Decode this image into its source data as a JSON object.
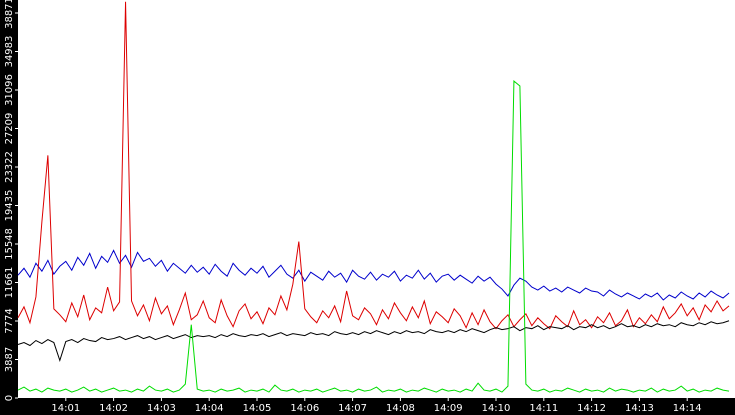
{
  "chart_data": {
    "type": "line",
    "categories": [
      null,
      null,
      null,
      null,
      null,
      null,
      null,
      null,
      "14:01",
      null,
      null,
      null,
      null,
      null,
      null,
      null,
      "14:02",
      null,
      null,
      null,
      null,
      null,
      null,
      null,
      "14:03",
      null,
      null,
      null,
      null,
      null,
      null,
      null,
      "14:04",
      null,
      null,
      null,
      null,
      null,
      null,
      null,
      "14:05",
      null,
      null,
      null,
      null,
      null,
      null,
      null,
      "14:06",
      null,
      null,
      null,
      null,
      null,
      null,
      null,
      "14:07",
      null,
      null,
      null,
      null,
      null,
      null,
      null,
      "14:08",
      null,
      null,
      null,
      null,
      null,
      null,
      null,
      "14:09",
      null,
      null,
      null,
      null,
      null,
      null,
      null,
      "14:10",
      null,
      null,
      null,
      null,
      null,
      null,
      null,
      "14:11",
      null,
      null,
      null,
      null,
      null,
      null,
      null,
      "14:12",
      null,
      null,
      null,
      null,
      null,
      null,
      null,
      "14:13",
      null,
      null,
      null,
      null,
      null,
      null,
      null,
      "14:14",
      null,
      null,
      null,
      null,
      null,
      null,
      null
    ],
    "series": [
      {
        "color": "#0000cc",
        "values": [
          12400,
          13100,
          12200,
          13600,
          12800,
          13900,
          12500,
          13300,
          13800,
          12900,
          14200,
          13400,
          14600,
          13100,
          14300,
          13700,
          14900,
          13600,
          14400,
          13200,
          14700,
          13800,
          14100,
          13300,
          13900,
          12800,
          13600,
          13100,
          12600,
          13400,
          12700,
          13200,
          12500,
          13500,
          12800,
          12300,
          13600,
          12900,
          12400,
          13100,
          12600,
          13300,
          12200,
          12800,
          13400,
          12500,
          12100,
          12900,
          11800,
          12700,
          12300,
          11900,
          12800,
          12200,
          12600,
          11700,
          12900,
          12300,
          12000,
          12700,
          11900,
          12500,
          12200,
          12800,
          11800,
          12400,
          12100,
          12900,
          12000,
          12600,
          11700,
          12300,
          12500,
          11900,
          12400,
          12000,
          11600,
          12300,
          11800,
          12200,
          11500,
          11000,
          10300,
          11400,
          12100,
          11800,
          11200,
          10900,
          11300,
          10800,
          11100,
          10700,
          11200,
          10900,
          10600,
          11100,
          10800,
          10700,
          10300,
          10900,
          10500,
          10200,
          10600,
          10300,
          10000,
          10500,
          10200,
          10600,
          9900,
          10400,
          10100,
          10700,
          10300,
          10000,
          10600,
          10200,
          10800,
          10400,
          10100,
          10600
        ]
      },
      {
        "color": "#dd0000",
        "values": [
          8100,
          9200,
          7600,
          10200,
          17800,
          24500,
          9000,
          8400,
          7700,
          9600,
          8200,
          10400,
          7900,
          9100,
          8600,
          11200,
          8800,
          9700,
          40000,
          9800,
          8300,
          9400,
          7800,
          10100,
          8500,
          9300,
          7400,
          8900,
          10600,
          7900,
          8400,
          9800,
          8100,
          7600,
          9900,
          8300,
          7200,
          8800,
          9500,
          8000,
          8700,
          7500,
          9100,
          8400,
          10300,
          8900,
          11500,
          15800,
          9000,
          8200,
          7600,
          8800,
          8100,
          9300,
          7700,
          10800,
          8300,
          7900,
          9100,
          8500,
          7400,
          8900,
          8000,
          9600,
          8600,
          7800,
          9200,
          8100,
          9800,
          7500,
          8700,
          8200,
          7600,
          9000,
          8300,
          7100,
          8600,
          7400,
          8900,
          7700,
          7000,
          7800,
          8400,
          7200,
          7900,
          8500,
          7300,
          8100,
          7500,
          7000,
          8300,
          7700,
          7200,
          8800,
          7400,
          7900,
          7100,
          8200,
          7600,
          8600,
          7300,
          7800,
          8900,
          7200,
          8100,
          7500,
          8400,
          7700,
          9200,
          8000,
          8600,
          9500,
          8300,
          9100,
          7900,
          9400,
          8700,
          9800,
          8800,
          9300
        ]
      },
      {
        "color": "#000000",
        "values": [
          5400,
          5600,
          5300,
          5800,
          5500,
          5900,
          5600,
          3800,
          5700,
          5900,
          5600,
          6000,
          5800,
          5700,
          6100,
          5900,
          6000,
          6200,
          5900,
          6100,
          6300,
          6000,
          6200,
          5900,
          6100,
          6300,
          6000,
          6200,
          6400,
          6100,
          6300,
          6200,
          6300,
          6100,
          6400,
          6200,
          6500,
          6300,
          6200,
          6400,
          6300,
          6500,
          6200,
          6400,
          6600,
          6300,
          6500,
          6400,
          6300,
          6600,
          6400,
          6500,
          6300,
          6700,
          6500,
          6400,
          6600,
          6400,
          6700,
          6500,
          6800,
          6600,
          6400,
          6700,
          6500,
          6800,
          6600,
          6700,
          6500,
          6900,
          6700,
          6600,
          6800,
          6600,
          6900,
          6700,
          7000,
          6800,
          6600,
          6900,
          7100,
          6900,
          7000,
          7200,
          6800,
          7100,
          7000,
          7300,
          6900,
          7200,
          7100,
          7000,
          7300,
          6900,
          7200,
          7100,
          7400,
          7100,
          7300,
          7000,
          7200,
          7500,
          7200,
          7300,
          7100,
          7400,
          7200,
          7500,
          7300,
          7400,
          7200,
          7600,
          7400,
          7300,
          7600,
          7400,
          7700,
          7500,
          7600,
          7800
        ]
      },
      {
        "color": "#00dd00",
        "values": [
          800,
          1100,
          700,
          900,
          600,
          1000,
          800,
          700,
          900,
          600,
          800,
          1100,
          700,
          900,
          600,
          800,
          1000,
          700,
          800,
          600,
          900,
          700,
          1200,
          800,
          700,
          900,
          600,
          800,
          1400,
          7400,
          900,
          700,
          800,
          600,
          900,
          700,
          800,
          1000,
          600,
          800,
          700,
          900,
          600,
          1300,
          800,
          700,
          900,
          600,
          800,
          700,
          900,
          600,
          800,
          1000,
          700,
          800,
          600,
          900,
          700,
          800,
          1100,
          600,
          800,
          700,
          900,
          600,
          800,
          700,
          1000,
          800,
          600,
          900,
          700,
          800,
          600,
          900,
          700,
          1500,
          800,
          700,
          900,
          600,
          1200,
          32000,
          31500,
          1400,
          800,
          700,
          900,
          600,
          800,
          700,
          1000,
          800,
          600,
          900,
          700,
          800,
          600,
          1000,
          700,
          900,
          800,
          600,
          800,
          700,
          1000,
          600,
          900,
          700,
          800,
          1200,
          700,
          900,
          600,
          800,
          700,
          1000,
          800,
          700
        ]
      }
    ],
    "ylim": [
      0,
      40184
    ],
    "yticks": [
      0,
      3887,
      7774,
      11661,
      15548,
      19435,
      23322,
      27209,
      31096,
      34983,
      38871
    ],
    "grid": false
  }
}
